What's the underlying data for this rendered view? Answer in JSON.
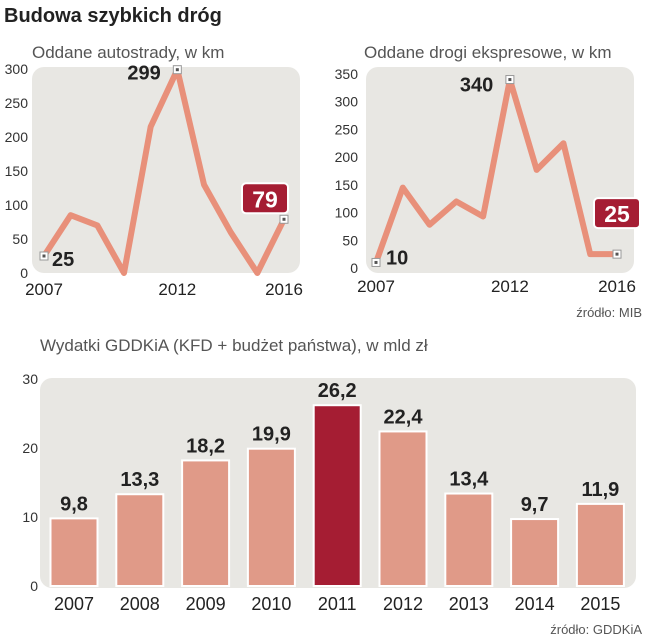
{
  "title": "Budowa szybkich dróg",
  "chart_data": [
    {
      "type": "line",
      "title": "Oddane autostrady, w km",
      "x": [
        2007,
        2008,
        2009,
        2010,
        2011,
        2012,
        2013,
        2014,
        2015,
        2016
      ],
      "values": [
        25,
        85,
        70,
        0,
        215,
        299,
        130,
        60,
        0,
        79
      ],
      "ylim": [
        0,
        300
      ],
      "yticks": [
        0,
        50,
        100,
        150,
        200,
        250,
        300
      ],
      "xtick_labels": [
        "2007",
        "2012",
        "2016"
      ],
      "annotations": [
        {
          "label": "25",
          "index": 0,
          "highlight": false
        },
        {
          "label": "299",
          "index": 5,
          "highlight": false
        },
        {
          "label": "79",
          "index": 9,
          "highlight": true
        }
      ],
      "grid": false,
      "line_color": "#E8907A"
    },
    {
      "type": "line",
      "title": "Oddane drogi ekspresowe, w km",
      "x": [
        2007,
        2008,
        2009,
        2010,
        2011,
        2012,
        2013,
        2014,
        2015,
        2016
      ],
      "values": [
        10,
        145,
        78,
        120,
        93,
        340,
        177,
        225,
        25,
        25
      ],
      "ylim": [
        0,
        350
      ],
      "yticks": [
        0,
        50,
        100,
        150,
        200,
        250,
        300,
        350
      ],
      "xtick_labels": [
        "2007",
        "2012",
        "2016"
      ],
      "annotations": [
        {
          "label": "10",
          "index": 0,
          "highlight": false
        },
        {
          "label": "340",
          "index": 5,
          "highlight": false
        },
        {
          "label": "25",
          "index": 9,
          "highlight": true
        }
      ],
      "source": "źródło: MIB",
      "grid": false,
      "line_color": "#E8907A"
    },
    {
      "type": "bar",
      "title": "Wydatki GDDKiA (KFD + budżet państwa), w mld zł",
      "categories": [
        "2007",
        "2008",
        "2009",
        "2010",
        "2011",
        "2012",
        "2013",
        "2014",
        "2015"
      ],
      "values": [
        9.8,
        13.3,
        18.2,
        19.9,
        26.2,
        22.4,
        13.4,
        9.7,
        11.9
      ],
      "value_labels": [
        "9,8",
        "13,3",
        "18,2",
        "19,9",
        "26,2",
        "22,4",
        "13,4",
        "9,7",
        "11,9"
      ],
      "highlight_index": 4,
      "ylim": [
        0,
        30
      ],
      "yticks": [
        0,
        10,
        20,
        30
      ],
      "source": "źródło: GDDKiA",
      "grid": false,
      "bar_color": "#E09A88",
      "highlight_color": "#A51D33"
    }
  ]
}
